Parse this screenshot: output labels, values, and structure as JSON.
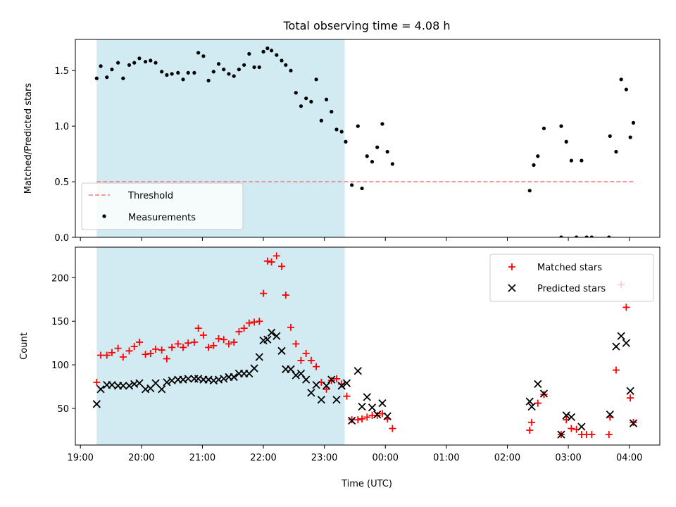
{
  "figure": {
    "title": "Total observing time = 4.08 h",
    "xlabel": "Time (UTC)"
  },
  "chart_data": [
    {
      "type": "scatter",
      "panel": "top",
      "ylabel": "Matched/Predicted stars",
      "ylim": [
        0,
        1.78
      ],
      "yticks": [
        0.0,
        0.5,
        1.0,
        1.5
      ],
      "ytick_labels": [
        "0.0",
        "0.5",
        "1.0",
        "1.5"
      ],
      "xlim": [
        "18:55",
        "04:30"
      ],
      "xtick_labels": [
        "19:00",
        "20:00",
        "21:00",
        "22:00",
        "23:00",
        "00:00",
        "01:00",
        "02:00",
        "03:00",
        "04:00"
      ],
      "shaded_region": {
        "from": "19:16",
        "to": "23:20",
        "color": "#add8e6"
      },
      "threshold": {
        "name": "Threshold",
        "value": 0.5,
        "from": "19:16",
        "to": "04:04",
        "color": "#f08080",
        "style": "dashed"
      },
      "legend": {
        "placement": "lower-left",
        "entries": [
          "Threshold",
          "Measurements"
        ]
      },
      "series": [
        {
          "name": "Measurements",
          "marker": "dot",
          "color": "#000000",
          "points": [
            [
              "19:16",
              1.43
            ],
            [
              "19:20",
              1.54
            ],
            [
              "19:26",
              1.44
            ],
            [
              "19:31",
              1.51
            ],
            [
              "19:37",
              1.57
            ],
            [
              "19:42",
              1.43
            ],
            [
              "19:48",
              1.55
            ],
            [
              "19:53",
              1.57
            ],
            [
              "19:58",
              1.61
            ],
            [
              "20:04",
              1.58
            ],
            [
              "20:09",
              1.59
            ],
            [
              "20:14",
              1.57
            ],
            [
              "20:20",
              1.49
            ],
            [
              "20:25",
              1.46
            ],
            [
              "20:30",
              1.47
            ],
            [
              "20:36",
              1.48
            ],
            [
              "20:41",
              1.42
            ],
            [
              "20:46",
              1.48
            ],
            [
              "20:52",
              1.48
            ],
            [
              "20:56",
              1.66
            ],
            [
              "21:01",
              1.63
            ],
            [
              "21:06",
              1.41
            ],
            [
              "21:11",
              1.49
            ],
            [
              "21:16",
              1.56
            ],
            [
              "21:21",
              1.51
            ],
            [
              "21:26",
              1.47
            ],
            [
              "21:31",
              1.45
            ],
            [
              "21:36",
              1.51
            ],
            [
              "21:41",
              1.55
            ],
            [
              "21:46",
              1.65
            ],
            [
              "21:51",
              1.53
            ],
            [
              "21:56",
              1.53
            ],
            [
              "22:00",
              1.67
            ],
            [
              "22:04",
              1.7
            ],
            [
              "22:08",
              1.68
            ],
            [
              "22:13",
              1.64
            ],
            [
              "22:18",
              1.59
            ],
            [
              "22:22",
              1.55
            ],
            [
              "22:27",
              1.5
            ],
            [
              "22:32",
              1.3
            ],
            [
              "22:37",
              1.18
            ],
            [
              "22:42",
              1.25
            ],
            [
              "22:47",
              1.22
            ],
            [
              "22:52",
              1.42
            ],
            [
              "22:57",
              1.05
            ],
            [
              "23:02",
              1.24
            ],
            [
              "23:07",
              1.13
            ],
            [
              "23:12",
              0.97
            ],
            [
              "23:17",
              0.95
            ],
            [
              "23:21",
              0.86
            ],
            [
              "23:27",
              0.47
            ],
            [
              "23:33",
              1.0
            ],
            [
              "23:37",
              0.44
            ],
            [
              "23:42",
              0.73
            ],
            [
              "23:47",
              0.68
            ],
            [
              "23:52",
              0.81
            ],
            [
              "23:57",
              1.02
            ],
            [
              "00:02",
              0.77
            ],
            [
              "00:07",
              0.66
            ],
            [
              "02:22",
              0.42
            ],
            [
              "02:26",
              0.65
            ],
            [
              "02:30",
              0.73
            ],
            [
              "02:36",
              0.98
            ],
            [
              "02:53",
              1.0
            ],
            [
              "02:58",
              0.86
            ],
            [
              "03:03",
              0.69
            ],
            [
              "03:13",
              0.69
            ],
            [
              "02:53",
              0.0
            ],
            [
              "03:08",
              0.0
            ],
            [
              "03:18",
              0.0
            ],
            [
              "03:23",
              0.0
            ],
            [
              "03:40",
              0.0
            ],
            [
              "03:41",
              0.91
            ],
            [
              "03:47",
              0.77
            ],
            [
              "03:52",
              1.42
            ],
            [
              "03:57",
              1.33
            ],
            [
              "04:01",
              0.9
            ],
            [
              "04:04",
              1.03
            ]
          ]
        }
      ]
    },
    {
      "type": "scatter",
      "panel": "bottom",
      "ylabel": "Count",
      "ylim": [
        8,
        235
      ],
      "yticks": [
        50,
        100,
        150,
        200
      ],
      "ytick_labels": [
        "50",
        "100",
        "150",
        "200"
      ],
      "xlim": [
        "18:55",
        "04:30"
      ],
      "xtick_labels": [
        "19:00",
        "20:00",
        "21:00",
        "22:00",
        "23:00",
        "00:00",
        "01:00",
        "02:00",
        "03:00",
        "04:00"
      ],
      "shaded_region": {
        "from": "19:16",
        "to": "23:20",
        "color": "#add8e6"
      },
      "legend": {
        "placement": "upper-right",
        "entries": [
          "Matched stars",
          "Predicted stars"
        ]
      },
      "series": [
        {
          "name": "Matched stars",
          "marker": "plus",
          "color": "#ff0000",
          "points": [
            [
              "19:16",
              80
            ],
            [
              "19:20",
              111
            ],
            [
              "19:26",
              111
            ],
            [
              "19:31",
              114
            ],
            [
              "19:37",
              119
            ],
            [
              "19:42",
              109
            ],
            [
              "19:48",
              116
            ],
            [
              "19:53",
              121
            ],
            [
              "19:58",
              126
            ],
            [
              "20:04",
              112
            ],
            [
              "20:09",
              113
            ],
            [
              "20:14",
              118
            ],
            [
              "20:20",
              117
            ],
            [
              "20:25",
              107
            ],
            [
              "20:30",
              120
            ],
            [
              "20:36",
              124
            ],
            [
              "20:41",
              120
            ],
            [
              "20:46",
              125
            ],
            [
              "20:52",
              126
            ],
            [
              "20:56",
              142
            ],
            [
              "21:01",
              134
            ],
            [
              "21:06",
              120
            ],
            [
              "21:11",
              122
            ],
            [
              "21:16",
              130
            ],
            [
              "21:21",
              129
            ],
            [
              "21:26",
              124
            ],
            [
              "21:31",
              126
            ],
            [
              "21:36",
              138
            ],
            [
              "21:41",
              142
            ],
            [
              "21:46",
              148
            ],
            [
              "21:51",
              149
            ],
            [
              "21:56",
              150
            ],
            [
              "22:00",
              182
            ],
            [
              "22:04",
              219
            ],
            [
              "22:08",
              218
            ],
            [
              "22:13",
              225
            ],
            [
              "22:18",
              213
            ],
            [
              "22:22",
              180
            ],
            [
              "22:27",
              143
            ],
            [
              "22:32",
              124
            ],
            [
              "22:37",
              105
            ],
            [
              "22:42",
              113
            ],
            [
              "22:47",
              105
            ],
            [
              "22:52",
              98
            ],
            [
              "22:57",
              80
            ],
            [
              "23:02",
              72
            ],
            [
              "23:07",
              82
            ],
            [
              "23:12",
              84
            ],
            [
              "23:17",
              78
            ],
            [
              "23:22",
              64
            ],
            [
              "23:27",
              37
            ],
            [
              "23:33",
              37
            ],
            [
              "23:37",
              38
            ],
            [
              "23:42",
              40
            ],
            [
              "23:47",
              42
            ],
            [
              "23:52",
              42
            ],
            [
              "23:57",
              44
            ],
            [
              "00:02",
              38
            ],
            [
              "00:07",
              27
            ],
            [
              "02:22",
              25
            ],
            [
              "02:24",
              34
            ],
            [
              "02:30",
              56
            ],
            [
              "02:36",
              66
            ],
            [
              "02:53",
              20
            ],
            [
              "02:58",
              37
            ],
            [
              "03:03",
              27
            ],
            [
              "03:08",
              26
            ],
            [
              "03:13",
              20
            ],
            [
              "03:18",
              20
            ],
            [
              "03:23",
              20
            ],
            [
              "03:40",
              20
            ],
            [
              "03:41",
              40
            ],
            [
              "03:47",
              94
            ],
            [
              "03:52",
              192
            ],
            [
              "03:57",
              166
            ],
            [
              "04:01",
              62
            ],
            [
              "04:04",
              34
            ]
          ]
        },
        {
          "name": "Predicted stars",
          "marker": "x",
          "color": "#000000",
          "points": [
            [
              "19:16",
              55
            ],
            [
              "19:20",
              72
            ],
            [
              "19:26",
              77
            ],
            [
              "19:31",
              77
            ],
            [
              "19:37",
              76
            ],
            [
              "19:42",
              76
            ],
            [
              "19:48",
              76
            ],
            [
              "19:53",
              78
            ],
            [
              "19:58",
              79
            ],
            [
              "20:04",
              72
            ],
            [
              "20:09",
              73
            ],
            [
              "20:14",
              79
            ],
            [
              "20:20",
              72
            ],
            [
              "20:25",
              80
            ],
            [
              "20:30",
              82
            ],
            [
              "20:36",
              83
            ],
            [
              "20:41",
              83
            ],
            [
              "20:46",
              84
            ],
            [
              "20:52",
              84
            ],
            [
              "20:56",
              84
            ],
            [
              "21:01",
              83
            ],
            [
              "21:06",
              83
            ],
            [
              "21:11",
              82
            ],
            [
              "21:16",
              83
            ],
            [
              "21:21",
              84
            ],
            [
              "21:26",
              86
            ],
            [
              "21:31",
              86
            ],
            [
              "21:36",
              90
            ],
            [
              "21:41",
              90
            ],
            [
              "21:46",
              90
            ],
            [
              "21:51",
              96
            ],
            [
              "21:56",
              109
            ],
            [
              "22:00",
              128
            ],
            [
              "22:04",
              129
            ],
            [
              "22:08",
              137
            ],
            [
              "22:13",
              133
            ],
            [
              "22:18",
              116
            ],
            [
              "22:22",
              95
            ],
            [
              "22:27",
              95
            ],
            [
              "22:32",
              88
            ],
            [
              "22:37",
              90
            ],
            [
              "22:42",
              83
            ],
            [
              "22:47",
              68
            ],
            [
              "22:52",
              77
            ],
            [
              "22:57",
              60
            ],
            [
              "23:02",
              76
            ],
            [
              "23:07",
              83
            ],
            [
              "23:12",
              60
            ],
            [
              "23:17",
              76
            ],
            [
              "23:22",
              79
            ],
            [
              "23:27",
              36
            ],
            [
              "23:33",
              93
            ],
            [
              "23:37",
              52
            ],
            [
              "23:42",
              63
            ],
            [
              "23:47",
              51
            ],
            [
              "23:52",
              43
            ],
            [
              "23:57",
              56
            ],
            [
              "00:02",
              41
            ],
            [
              "02:22",
              58
            ],
            [
              "02:24",
              52
            ],
            [
              "02:30",
              78
            ],
            [
              "02:36",
              67
            ],
            [
              "02:53",
              20
            ],
            [
              "02:58",
              42
            ],
            [
              "03:03",
              40
            ],
            [
              "03:13",
              29
            ],
            [
              "03:41",
              43
            ],
            [
              "03:47",
              121
            ],
            [
              "03:52",
              133
            ],
            [
              "03:57",
              125
            ],
            [
              "04:01",
              70
            ],
            [
              "04:04",
              33
            ]
          ]
        }
      ]
    }
  ]
}
